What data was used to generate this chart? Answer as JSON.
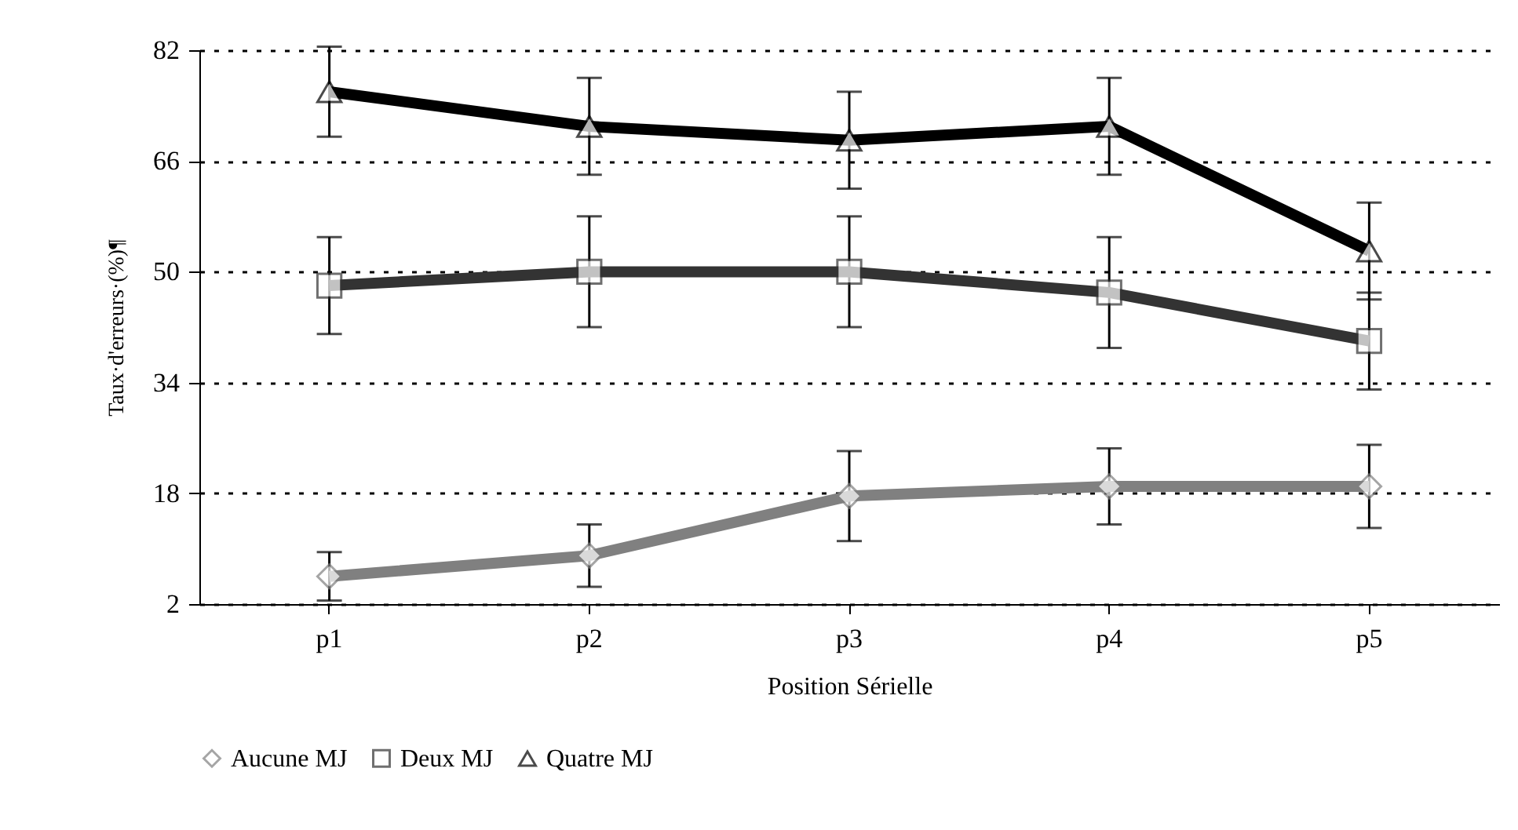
{
  "chart_data": {
    "type": "line",
    "xlabel": "Position Sérielle",
    "ylabel": "Taux·d'erreurs·(%)¶",
    "categories": [
      "p1",
      "p2",
      "p3",
      "p4",
      "p5"
    ],
    "series": [
      {
        "name": "Aucune MJ",
        "color": "#808080",
        "marker": "diamond",
        "values": [
          6,
          9,
          17.6,
          19,
          19
        ],
        "errors": [
          3.5,
          4.5,
          6.5,
          5.5,
          6
        ]
      },
      {
        "name": "Deux MJ",
        "color": "#333333",
        "marker": "square",
        "values": [
          48,
          50,
          50,
          47,
          40
        ],
        "errors": [
          7,
          8,
          8,
          8,
          7
        ]
      },
      {
        "name": "Quatre MJ",
        "color": "#000000",
        "marker": "triangle",
        "values": [
          76,
          71,
          69,
          71,
          53
        ],
        "errors": [
          6.5,
          7,
          7,
          7,
          7
        ]
      }
    ],
    "ylim": [
      2,
      82
    ],
    "yticks": [
      2,
      18,
      34,
      50,
      66,
      82
    ],
    "grid": "y",
    "legend": "bottom"
  }
}
